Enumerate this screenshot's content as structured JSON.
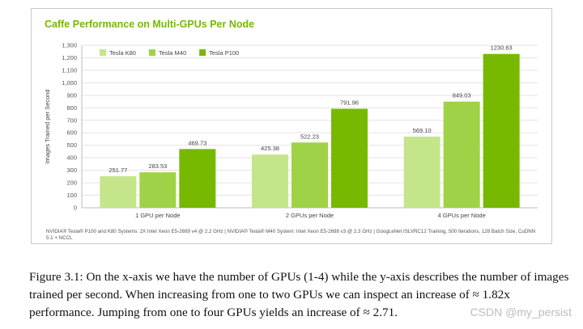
{
  "chart_data": {
    "type": "bar",
    "title": "Caffe Performance on Multi-GPUs Per Node",
    "ylabel": "Images Trained per Second",
    "xlabel": "",
    "ylim": [
      0,
      1300
    ],
    "yticks": [
      0,
      100,
      200,
      300,
      400,
      500,
      600,
      700,
      800,
      900,
      1000,
      1100,
      1200,
      1300
    ],
    "ytick_labels": [
      "0",
      "100",
      "200",
      "300",
      "400",
      "500",
      "600",
      "700",
      "800",
      "900",
      "1,000",
      "1,100",
      "1,200",
      "1,300"
    ],
    "categories": [
      "1 GPU per Node",
      "2 GPUs per Node",
      "4 GPUs per Node"
    ],
    "series": [
      {
        "name": "Tesla K80",
        "color": "#c5e58a",
        "values": [
          251.77,
          425.38,
          569.1
        ],
        "labels": [
          "251.77",
          "425.38",
          "569.10"
        ]
      },
      {
        "name": "Tesla M40",
        "color": "#9fd246",
        "values": [
          283.53,
          522.23,
          849.03
        ],
        "labels": [
          "283.53",
          "522.23",
          "849.03"
        ]
      },
      {
        "name": "Tesla P100",
        "color": "#76b900",
        "values": [
          469.73,
          791.96,
          1230.63
        ],
        "labels": [
          "469.73",
          "791.96",
          "1230.63"
        ]
      }
    ],
    "grid": true,
    "legend_position": "top-left",
    "footnote": "NVIDIA® Tesla® P100 and K80 Systems: 2X Intel Xeon E5-2699 v4 @ 2.2 GHz | NVIDIA® Tesla® M40 System: Intel Xeon E5-2698 v3 @ 2.3 GHz | GoogLeNet ISLVRC12 Training, 500 Iterations, 128 Batch Size, CuDNN 5.1 + NCCL"
  },
  "caption": "Figure 3.1: On the x-axis we have the number of GPUs (1-4) while the y-axis describes the number of images trained per second. When increasing from one to two GPUs we can inspect an increase of ≈ 1.82x performance. Jumping from one to four GPUs yields an increase of ≈ 2.71.",
  "watermark": "CSDN @my_persist"
}
